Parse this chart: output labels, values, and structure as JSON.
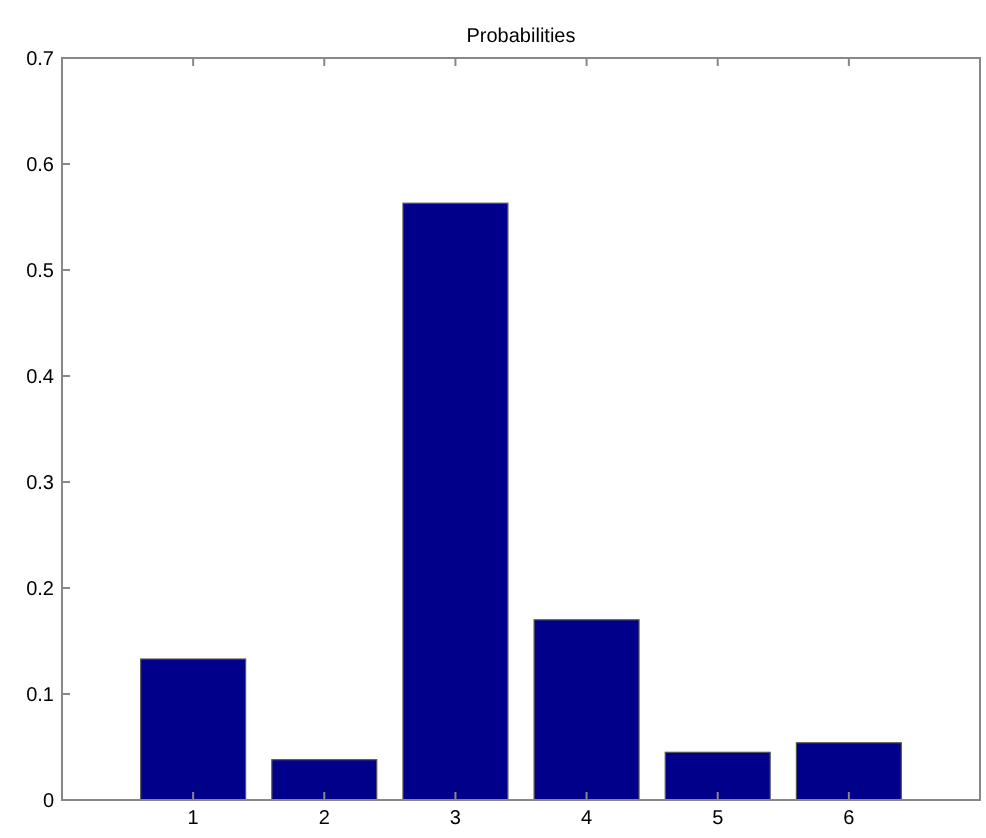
{
  "chart_data": {
    "type": "bar",
    "title": "Probabilities",
    "categories": [
      "1",
      "2",
      "3",
      "4",
      "5",
      "6"
    ],
    "values": [
      0.133,
      0.038,
      0.563,
      0.17,
      0.045,
      0.054
    ],
    "color": "#00008b",
    "ylim": [
      0,
      0.7
    ],
    "yticks": [
      0,
      0.1,
      0.2,
      0.3,
      0.4,
      0.5,
      0.6,
      0.7
    ],
    "grid": false
  }
}
